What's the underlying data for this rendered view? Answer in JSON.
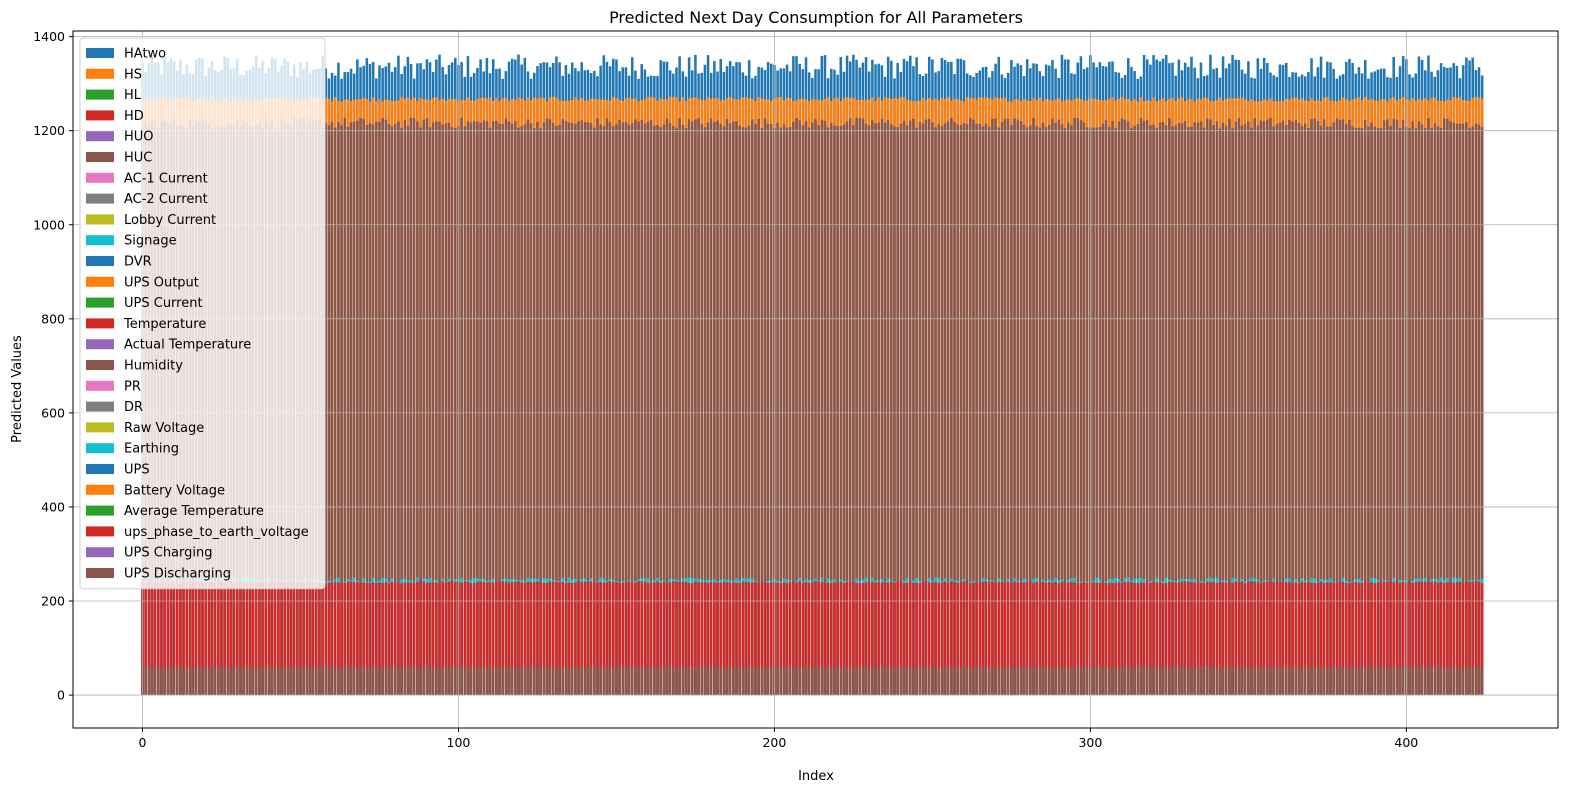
{
  "chart_data": {
    "type": "bar",
    "title": "Predicted Next Day Consumption for All Parameters",
    "xlabel": "Index",
    "ylabel": "Predicted Values",
    "xlim": [
      -22,
      448
    ],
    "ylim": [
      -70,
      1412
    ],
    "x_ticks": [
      0,
      100,
      200,
      300,
      400
    ],
    "y_ticks": [
      0,
      200,
      400,
      600,
      800,
      1000,
      1200,
      1400
    ],
    "grid": true,
    "legend_position": "upper-left",
    "n_points": 425,
    "series": [
      {
        "name": "HAtwo",
        "color": "#1f77b4",
        "approx_value": 1335,
        "range": [
          1310,
          1362
        ]
      },
      {
        "name": "HS",
        "color": "#ff7f0e",
        "approx_value": 1268,
        "range": [
          1262,
          1272
        ]
      },
      {
        "name": "HL",
        "color": "#2ca02c",
        "approx_value": 0
      },
      {
        "name": "HD",
        "color": "#d62728",
        "approx_value": 0
      },
      {
        "name": "HUO",
        "color": "#9467bd",
        "approx_value": 0
      },
      {
        "name": "HUC",
        "color": "#8c564b",
        "approx_value": 1215,
        "range": [
          1205,
          1228
        ]
      },
      {
        "name": "AC-1 Current",
        "color": "#e377c2",
        "approx_value": 0
      },
      {
        "name": "AC-2 Current",
        "color": "#7f7f7f",
        "approx_value": 0
      },
      {
        "name": "Lobby Current",
        "color": "#bcbd22",
        "approx_value": 0
      },
      {
        "name": "Signage",
        "color": "#17becf",
        "approx_value": 0
      },
      {
        "name": "DVR",
        "color": "#1f77b4",
        "approx_value": 0
      },
      {
        "name": "UPS Output",
        "color": "#ff7f0e",
        "approx_value": 0
      },
      {
        "name": "UPS Current",
        "color": "#2ca02c",
        "approx_value": 0
      },
      {
        "name": "Temperature",
        "color": "#d62728",
        "approx_value": 0
      },
      {
        "name": "Actual Temperature",
        "color": "#9467bd",
        "approx_value": 0
      },
      {
        "name": "Humidity",
        "color": "#8c564b",
        "approx_value": 0
      },
      {
        "name": "PR",
        "color": "#e377c2",
        "approx_value": 0
      },
      {
        "name": "DR",
        "color": "#7f7f7f",
        "approx_value": 0
      },
      {
        "name": "Raw Voltage",
        "color": "#bcbd22",
        "approx_value": 0
      },
      {
        "name": "Earthing",
        "color": "#17becf",
        "approx_value": 243,
        "range": [
          240,
          250
        ]
      },
      {
        "name": "UPS",
        "color": "#1f77b4",
        "approx_value": 0
      },
      {
        "name": "Battery Voltage",
        "color": "#ff7f0e",
        "approx_value": 0
      },
      {
        "name": "Average Temperature",
        "color": "#2ca02c",
        "approx_value": 0
      },
      {
        "name": "ups_phase_to_earth_voltage",
        "color": "#d62728",
        "approx_value": 240,
        "range": [
          238,
          242
        ]
      },
      {
        "name": "UPS Charging",
        "color": "#9467bd",
        "approx_value": 0
      },
      {
        "name": "UPS Discharging",
        "color": "#8c564b",
        "approx_value": 60,
        "range": [
          58,
          61
        ]
      }
    ]
  }
}
